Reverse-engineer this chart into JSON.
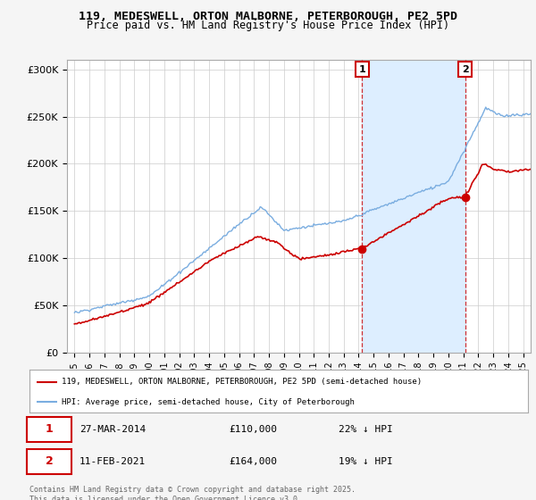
{
  "title": "119, MEDESWELL, ORTON MALBORNE, PETERBOROUGH, PE2 5PD",
  "subtitle": "Price paid vs. HM Land Registry's House Price Index (HPI)",
  "red_label": "119, MEDESWELL, ORTON MALBORNE, PETERBOROUGH, PE2 5PD (semi-detached house)",
  "blue_label": "HPI: Average price, semi-detached house, City of Peterborough",
  "footer": "Contains HM Land Registry data © Crown copyright and database right 2025.\nThis data is licensed under the Open Government Licence v3.0.",
  "sale1_date": "27-MAR-2014",
  "sale1_price": "£110,000",
  "sale1_pct": "22% ↓ HPI",
  "sale2_date": "11-FEB-2021",
  "sale2_price": "£164,000",
  "sale2_pct": "19% ↓ HPI",
  "sale1_x": 2014.23,
  "sale1_y": 110000,
  "sale2_x": 2021.12,
  "sale2_y": 164000,
  "vline1_x": 2014.23,
  "vline2_x": 2021.12,
  "ylim": [
    0,
    310000
  ],
  "xlim": [
    1994.5,
    2025.5
  ],
  "yticks": [
    0,
    50000,
    100000,
    150000,
    200000,
    250000,
    300000
  ],
  "ytick_labels": [
    "£0",
    "£50K",
    "£100K",
    "£150K",
    "£200K",
    "£250K",
    "£300K"
  ],
  "background_color": "#f5f5f5",
  "plot_bg": "#ffffff",
  "red_color": "#cc0000",
  "blue_color": "#7aade0",
  "vline_color": "#cc0000",
  "shade_color": "#ddeeff"
}
